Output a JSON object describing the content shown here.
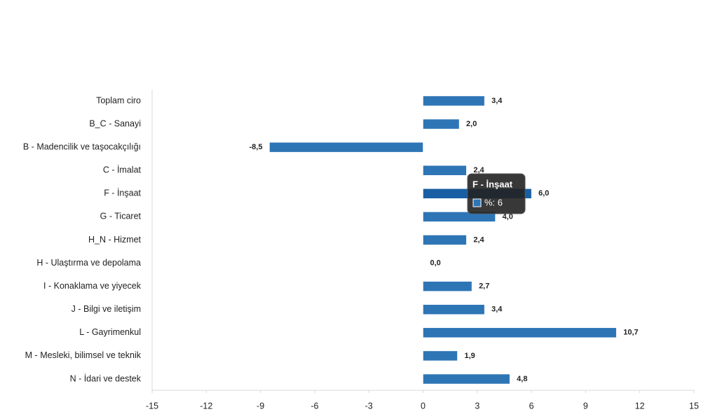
{
  "chart_data": {
    "type": "bar",
    "orientation": "horizontal",
    "categories": [
      "Toplam ciro",
      "B_C - Sanayi",
      "B - Madencilik ve taşocakçılığı",
      "C - İmalat",
      "F - İnşaat",
      "G - Ticaret",
      "H_N - Hizmet",
      "H - Ulaştırma ve depolama",
      "I - Konaklama ve yiyecek",
      "J - Bilgi ve iletişim",
      "L - Gayrimenkul",
      "M - Mesleki, bilimsel ve teknik",
      "N - İdari ve destek"
    ],
    "values": [
      3.4,
      2.0,
      -8.5,
      2.4,
      6.0,
      4.0,
      2.4,
      0.0,
      2.7,
      3.4,
      10.7,
      1.9,
      4.8
    ],
    "value_labels": [
      "3,4",
      "2,0",
      "-8,5",
      "2,4",
      "6,0",
      "4,0",
      "2,4",
      "0,0",
      "2,7",
      "3,4",
      "10,7",
      "1,9",
      "4,8"
    ],
    "color": "#2e75b6",
    "highlight_color": "#1a5fa3",
    "xlim": [
      -15,
      15
    ],
    "xticks": [
      -15,
      -12,
      -9,
      -6,
      -3,
      0,
      3,
      6,
      9,
      12,
      15
    ],
    "tooltip": {
      "index": 4,
      "title": "F - İnşaat",
      "label": "%: 6"
    }
  }
}
